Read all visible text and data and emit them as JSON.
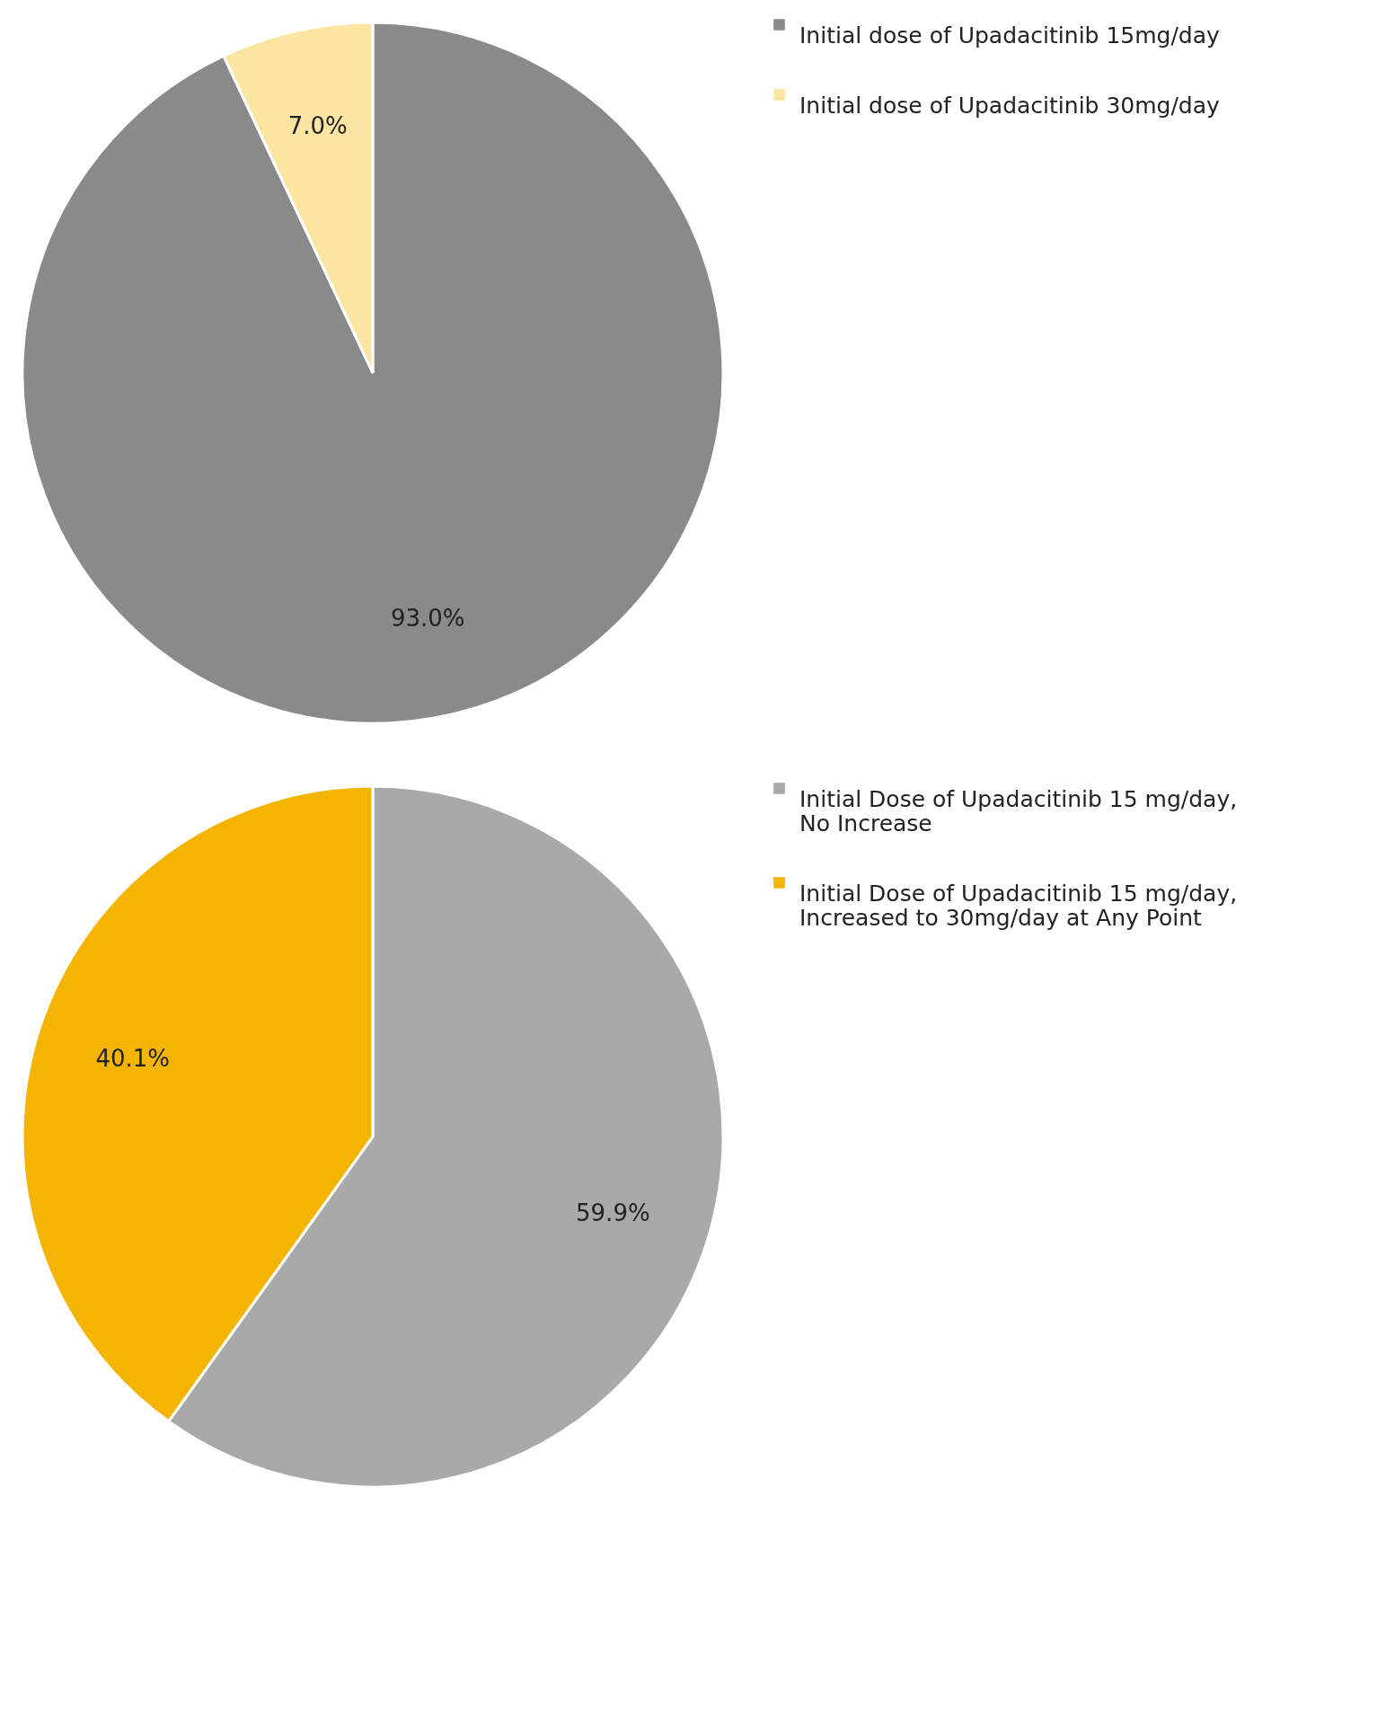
{
  "chart_data": [
    {
      "type": "pie",
      "categories": [
        "Initial dose of Upadacitinib 15mg/day",
        "Initial dose of Upadacitinib 30mg/day"
      ],
      "values": [
        93.0,
        7.0
      ],
      "colors": [
        "#8a8a8a",
        "#fce5a0"
      ],
      "value_labels": [
        "93.0%",
        "7.0%"
      ],
      "legend": "right"
    },
    {
      "type": "pie",
      "categories": [
        "Initial Dose of Upadacitinib 15 mg/day, No Increase",
        "Initial Dose of Upadacitinib  15 mg/day, Increased to 30mg/day at Any Point"
      ],
      "values": [
        59.9,
        40.1
      ],
      "colors": [
        "#a9a9a9",
        "#f4b400"
      ],
      "value_labels": [
        "59.9%",
        "40.1%"
      ],
      "legend": "right"
    }
  ]
}
